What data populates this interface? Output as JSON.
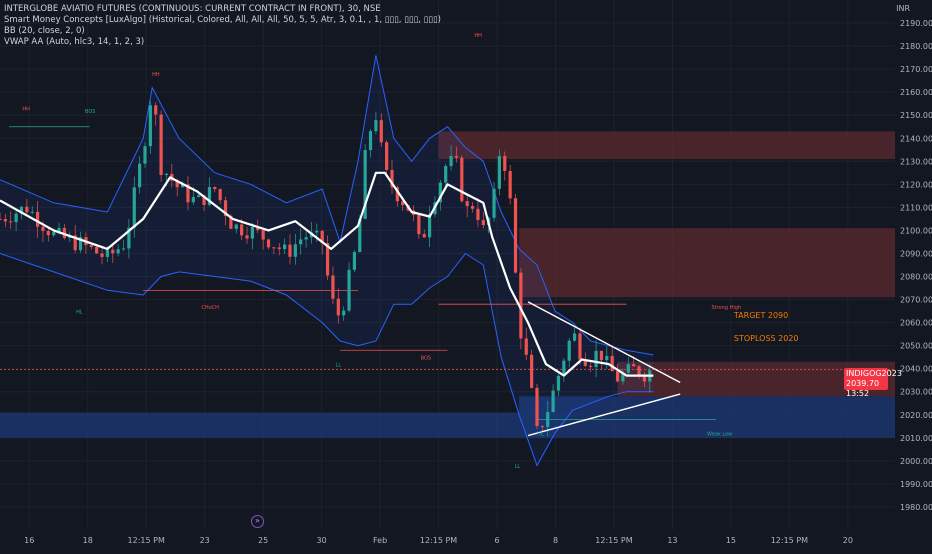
{
  "legend": {
    "title": "INTERGLOBE AVIATIO FUTURES (CONTINUOUS: CURRENT CONTRACT IN FRONT), 30, NSE",
    "indicator_smc": "Smart Money Concepts [LuxAlgo] (Historical, Colored, All, All, All, 50, 5, 5, Atr, 3, 0.1, , 1, ▯▯▯, ▯▯▯, ▯▯▯)",
    "indicator_bb": "BB (20, close, 2, 0)",
    "indicator_vwap": "VWAP AA (Auto, hlc3, 14, 1, 2, 3)"
  },
  "currency": "INR",
  "price_badge": {
    "symbol": "INDIGOG2023",
    "price": "2039.70",
    "countdown": "13:52"
  },
  "colors": {
    "bull": "#26a69a",
    "bear": "#ef5350",
    "band": "#2962ff",
    "vwap": "#ffffff",
    "supply_zone": "#5c2a2e",
    "demand_zone": "#1e3a78",
    "annotation": "#f57c00"
  },
  "chart_data": {
    "type": "candlestick",
    "ylim": [
      1970,
      2200
    ],
    "y_ticks": [
      1980,
      1990,
      2000,
      2010,
      2020,
      2030,
      2040,
      2050,
      2060,
      2070,
      2080,
      2090,
      2100,
      2110,
      2120,
      2130,
      2140,
      2150,
      2160,
      2170,
      2180,
      2190
    ],
    "x_tick_labels": [
      "16",
      "18",
      "12:15 PM",
      "23",
      "25",
      "30",
      "Feb",
      "12:15 PM",
      "6",
      "8",
      "12:15 PM",
      "13",
      "15",
      "12:15 PM",
      "20"
    ],
    "x_range": [
      0,
      100
    ],
    "price_path": [
      [
        0,
        2105
      ],
      [
        3,
        2110
      ],
      [
        6,
        2098
      ],
      [
        9,
        2094
      ],
      [
        12,
        2088
      ],
      [
        14,
        2095
      ],
      [
        16,
        2135
      ],
      [
        17,
        2162
      ],
      [
        18,
        2128
      ],
      [
        20,
        2118
      ],
      [
        22,
        2112
      ],
      [
        24,
        2118
      ],
      [
        26,
        2102
      ],
      [
        28,
        2100
      ],
      [
        30,
        2096
      ],
      [
        32,
        2090
      ],
      [
        34,
        2098
      ],
      [
        36,
        2095
      ],
      [
        37,
        2070
      ],
      [
        38,
        2062
      ],
      [
        40,
        2096
      ],
      [
        41,
        2140
      ],
      [
        42,
        2150
      ],
      [
        43,
        2125
      ],
      [
        44,
        2118
      ],
      [
        46,
        2108
      ],
      [
        47,
        2092
      ],
      [
        48,
        2110
      ],
      [
        50,
        2130
      ],
      [
        51,
        2128
      ],
      [
        52,
        2108
      ],
      [
        53,
        2112
      ],
      [
        54,
        2100
      ],
      [
        55,
        2108
      ],
      [
        56,
        2140
      ],
      [
        57,
        2112
      ],
      [
        58,
        2060
      ],
      [
        59,
        2040
      ],
      [
        60,
        2012
      ],
      [
        61,
        2020
      ],
      [
        62,
        2032
      ],
      [
        63,
        2045
      ],
      [
        64,
        2056
      ],
      [
        65,
        2046
      ],
      [
        66,
        2044
      ],
      [
        67,
        2048
      ],
      [
        68,
        2040
      ],
      [
        69,
        2036
      ],
      [
        70,
        2038
      ],
      [
        71,
        2040
      ],
      [
        72,
        2038
      ],
      [
        73,
        2039.7
      ]
    ],
    "series": [
      {
        "type": "line",
        "points": [
          [
            0,
            2113
          ],
          [
            6,
            2100
          ],
          [
            12,
            2092
          ],
          [
            16,
            2105
          ],
          [
            19,
            2123
          ],
          [
            22,
            2117
          ],
          [
            26,
            2105
          ],
          [
            30,
            2100
          ],
          [
            33,
            2104
          ],
          [
            37,
            2092
          ],
          [
            40,
            2102
          ],
          [
            42,
            2125
          ],
          [
            43,
            2125
          ],
          [
            46,
            2108
          ],
          [
            48,
            2106
          ],
          [
            50,
            2120
          ],
          [
            52,
            2116
          ],
          [
            54,
            2112
          ],
          [
            55,
            2097
          ],
          [
            57,
            2075
          ],
          [
            59,
            2060
          ],
          [
            61,
            2042
          ],
          [
            63,
            2037
          ],
          [
            65,
            2044
          ],
          [
            68,
            2042
          ],
          [
            70,
            2037
          ],
          [
            73,
            2037
          ]
        ]
      },
      {
        "type": "band-upper",
        "points": [
          [
            0,
            2122
          ],
          [
            6,
            2112
          ],
          [
            12,
            2108
          ],
          [
            16,
            2140
          ],
          [
            17,
            2162
          ],
          [
            20,
            2140
          ],
          [
            24,
            2125
          ],
          [
            28,
            2120
          ],
          [
            32,
            2112
          ],
          [
            36,
            2118
          ],
          [
            38,
            2095
          ],
          [
            40,
            2130
          ],
          [
            42,
            2176
          ],
          [
            44,
            2140
          ],
          [
            46,
            2130
          ],
          [
            48,
            2140
          ],
          [
            50,
            2145
          ],
          [
            52,
            2136
          ],
          [
            54,
            2130
          ],
          [
            56,
            2108
          ],
          [
            58,
            2092
          ],
          [
            60,
            2085
          ],
          [
            62,
            2065
          ],
          [
            64,
            2060
          ],
          [
            66,
            2052
          ],
          [
            68,
            2050
          ],
          [
            70,
            2048
          ],
          [
            73,
            2046
          ]
        ]
      },
      {
        "type": "band-lower",
        "points": [
          [
            0,
            2090
          ],
          [
            6,
            2082
          ],
          [
            12,
            2074
          ],
          [
            16,
            2072
          ],
          [
            18,
            2080
          ],
          [
            20,
            2082
          ],
          [
            24,
            2080
          ],
          [
            28,
            2078
          ],
          [
            32,
            2072
          ],
          [
            36,
            2060
          ],
          [
            38,
            2052
          ],
          [
            40,
            2050
          ],
          [
            42,
            2052
          ],
          [
            44,
            2068
          ],
          [
            46,
            2068
          ],
          [
            48,
            2075
          ],
          [
            50,
            2080
          ],
          [
            52,
            2090
          ],
          [
            54,
            2085
          ],
          [
            56,
            2045
          ],
          [
            58,
            2020
          ],
          [
            60,
            1998
          ],
          [
            62,
            2012
          ],
          [
            64,
            2022
          ],
          [
            66,
            2025
          ],
          [
            68,
            2028
          ],
          [
            70,
            2030
          ],
          [
            73,
            2030
          ]
        ]
      }
    ],
    "zones": [
      {
        "from": 2131,
        "to": 2143,
        "x_start": 49,
        "color": "supply"
      },
      {
        "from": 2071,
        "to": 2101,
        "x_start": 58,
        "color": "supply"
      },
      {
        "from": 2028,
        "to": 2043,
        "x_start": 69,
        "color": "supply"
      },
      {
        "from": 2021,
        "to": 2028,
        "x_start": 58,
        "color": "demand"
      },
      {
        "from": 2010,
        "to": 2021,
        "x_start": 0,
        "color": "demand"
      }
    ],
    "triangle": {
      "upper": [
        [
          59,
          2069
        ],
        [
          76,
          2034
        ]
      ],
      "lower": [
        [
          59,
          2011
        ],
        [
          76,
          2029
        ]
      ]
    },
    "annotations": [
      {
        "text": "HH",
        "x": 2.5,
        "y": 2152,
        "color": "bear"
      },
      {
        "text": "BOS",
        "x": 9.5,
        "y": 2151,
        "color": "bull"
      },
      {
        "text": "HH",
        "x": 17,
        "y": 2167,
        "color": "bear"
      },
      {
        "text": "HH",
        "x": 53,
        "y": 2184,
        "color": "bear"
      },
      {
        "text": "HL",
        "x": 8.5,
        "y": 2064,
        "color": "bull"
      },
      {
        "text": "CHoCH",
        "x": 22.5,
        "y": 2066,
        "color": "bear"
      },
      {
        "text": "LL",
        "x": 37.5,
        "y": 2041,
        "color": "bull"
      },
      {
        "text": "BOS",
        "x": 47,
        "y": 2044,
        "color": "bear"
      },
      {
        "text": "HL",
        "x": 60,
        "y": 2011,
        "color": "bull"
      },
      {
        "text": "LL",
        "x": 57.5,
        "y": 1997,
        "color": "bull"
      },
      {
        "text": "Strong High",
        "x": 79.5,
        "y": 2066,
        "color": "bear"
      },
      {
        "text": "Weak Low",
        "x": 79,
        "y": 2011,
        "color": "bull"
      },
      {
        "text": "TARGET 2090",
        "x": 82,
        "y": 2062,
        "color": "orange"
      },
      {
        "text": "STOPLOSS 2020",
        "x": 82,
        "y": 2052,
        "color": "orange"
      }
    ]
  }
}
